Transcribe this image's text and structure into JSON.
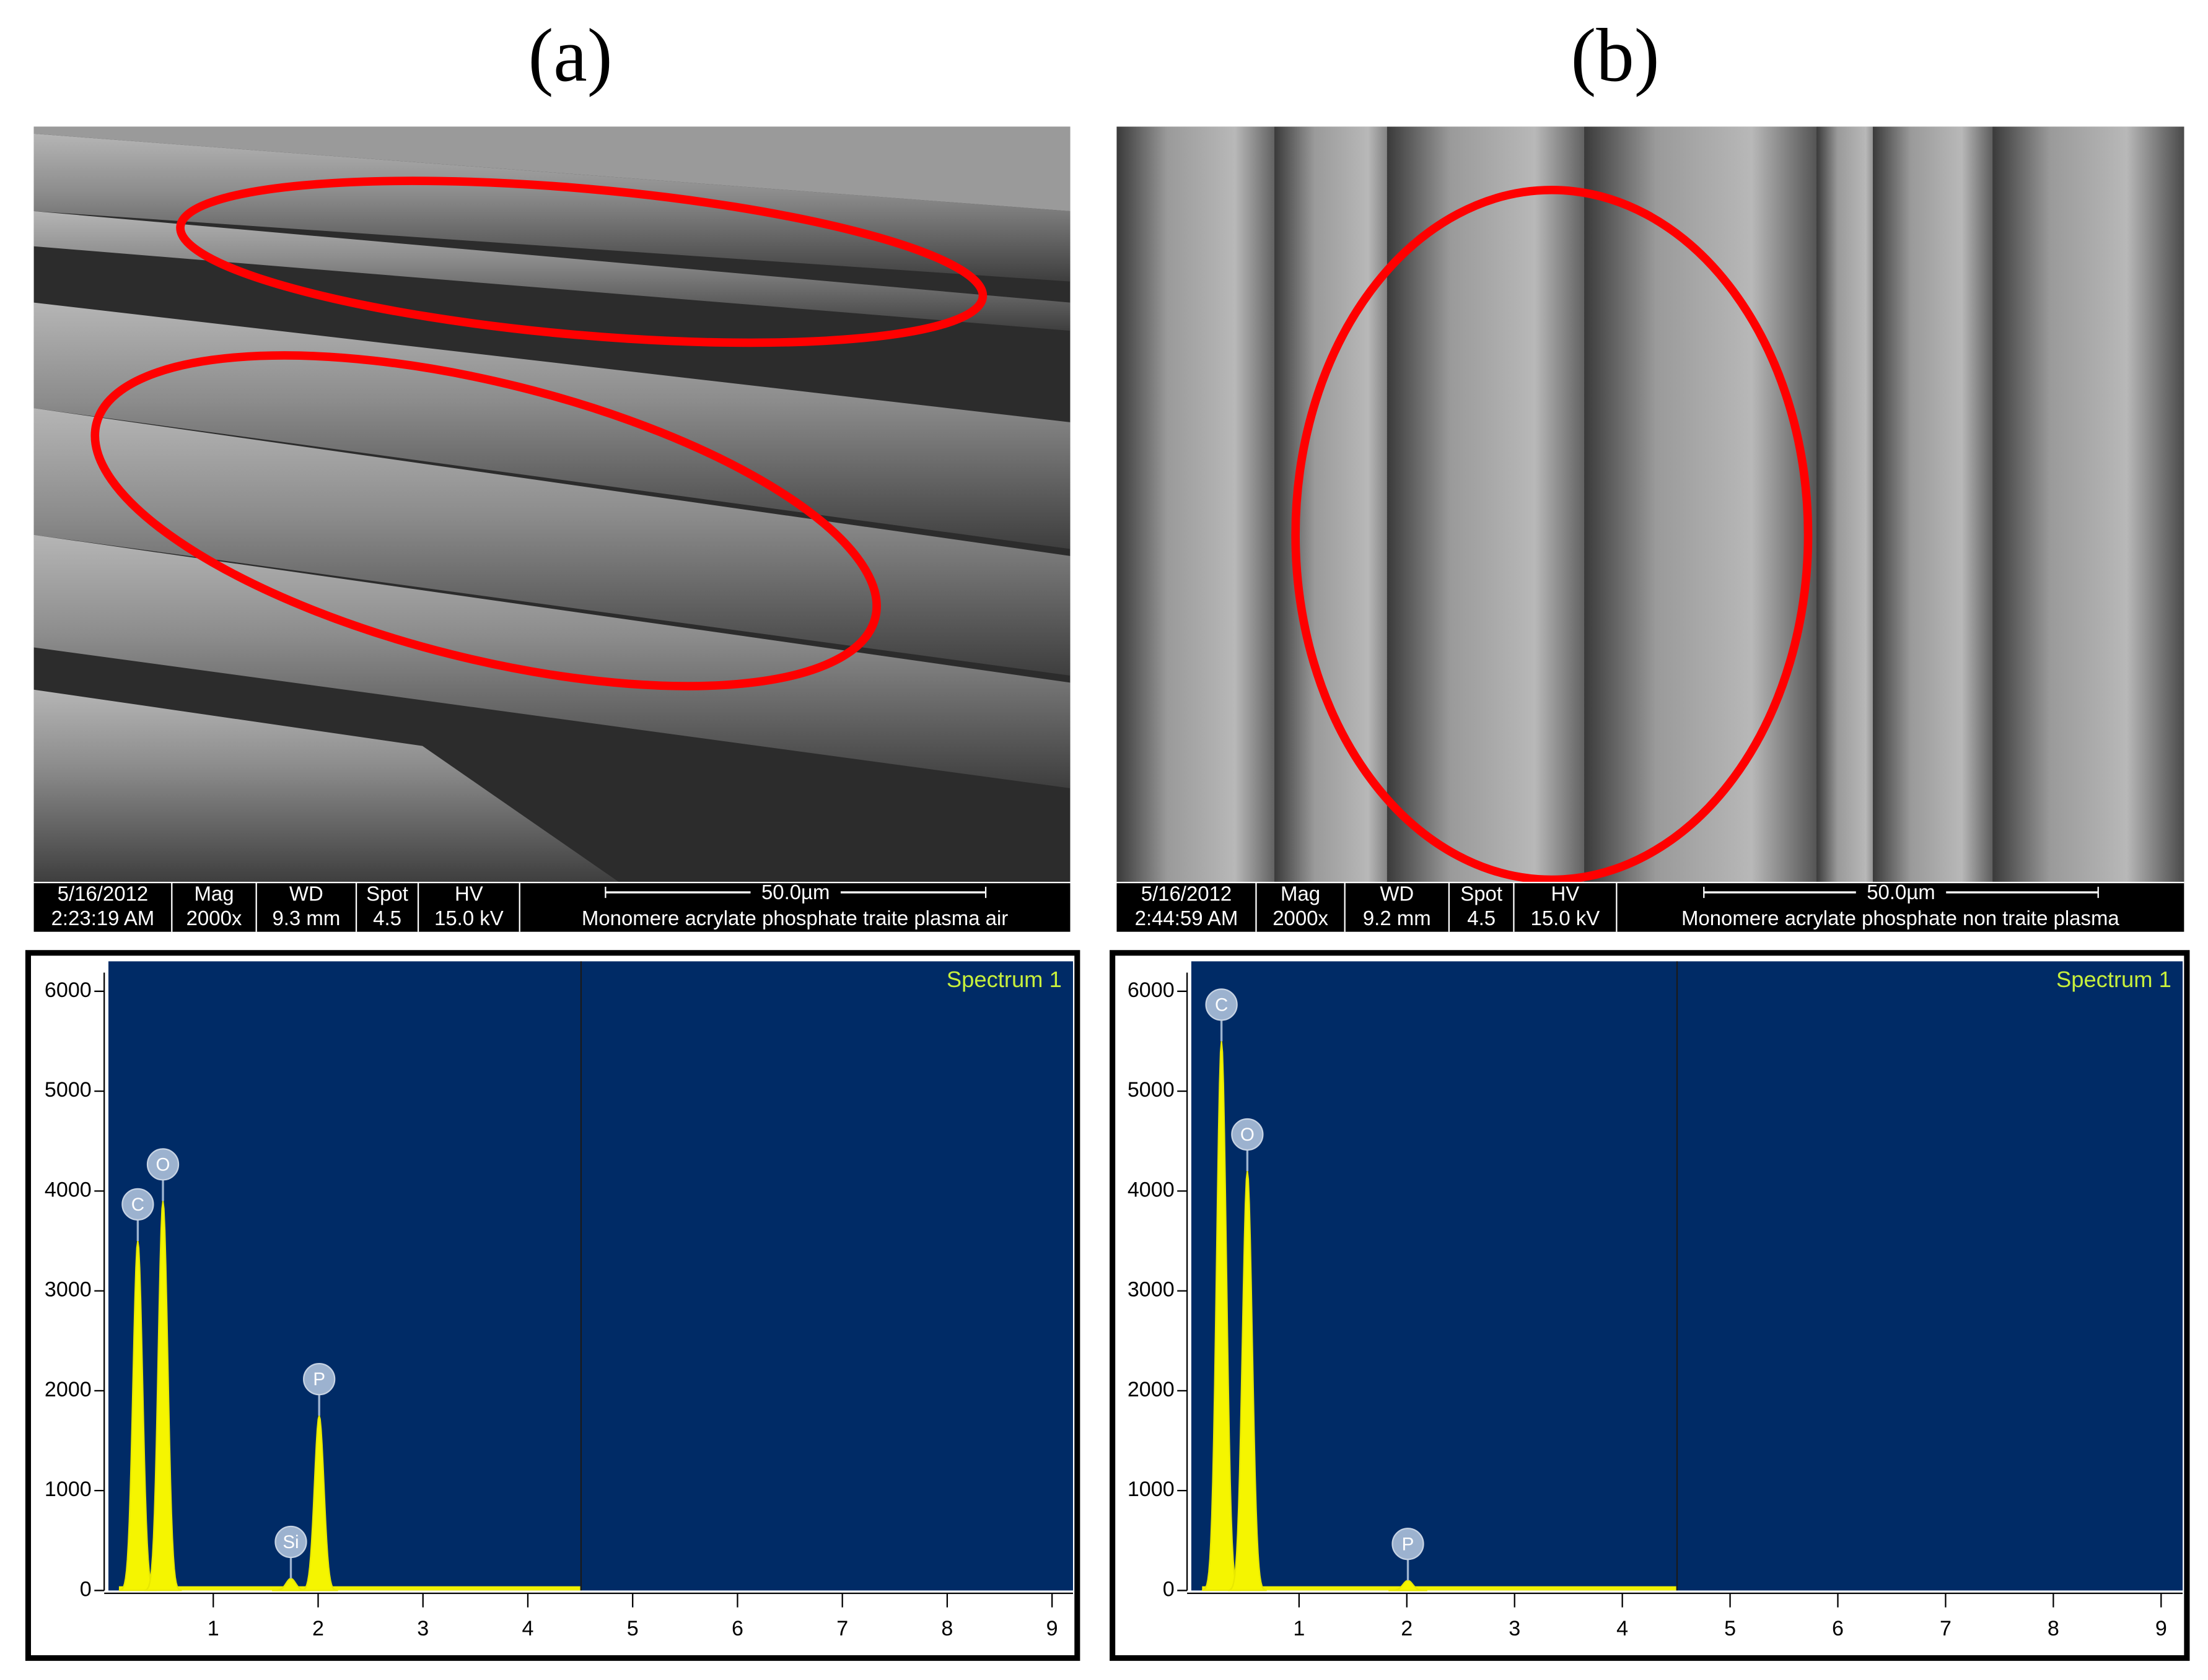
{
  "panels": [
    {
      "label": "(a)",
      "sem": {
        "date": "5/16/2012",
        "time": "2:23:19 AM",
        "columns": [
          {
            "header": "Mag",
            "value": "2000x"
          },
          {
            "header": "WD",
            "value": "9.3 mm"
          },
          {
            "header": "Spot",
            "value": "4.5"
          },
          {
            "header": "HV",
            "value": "15.0 kV"
          }
        ],
        "scale_bar": "50.0µm",
        "description": "Monomere acrylate phosphate traite plasma air"
      },
      "spectrum": {
        "title": "Spectrum 1",
        "xlim": [
          0,
          9.2
        ],
        "ylim": [
          0,
          6300
        ],
        "xticks": [
          1,
          2,
          3,
          4,
          5,
          6,
          7,
          8,
          9
        ],
        "yticks": [
          0,
          1000,
          2000,
          3000,
          4000,
          5000,
          6000
        ],
        "peaks": [
          {
            "element": "C",
            "energy": 0.28,
            "counts": 3500
          },
          {
            "element": "O",
            "energy": 0.52,
            "counts": 3900
          },
          {
            "element": "Si",
            "energy": 1.74,
            "counts": 120
          },
          {
            "element": "P",
            "energy": 2.01,
            "counts": 1750
          }
        ]
      }
    },
    {
      "label": "(b)",
      "sem": {
        "date": "5/16/2012",
        "time": "2:44:59 AM",
        "columns": [
          {
            "header": "Mag",
            "value": "2000x"
          },
          {
            "header": "WD",
            "value": "9.2 mm"
          },
          {
            "header": "Spot",
            "value": "4.5"
          },
          {
            "header": "HV",
            "value": "15.0 kV"
          }
        ],
        "scale_bar": "50.0µm",
        "description": "Monomere acrylate phosphate non traite plasma"
      },
      "spectrum": {
        "title": "Spectrum 1",
        "xlim": [
          0,
          9.2
        ],
        "ylim": [
          0,
          6300
        ],
        "xticks": [
          1,
          2,
          3,
          4,
          5,
          6,
          7,
          8,
          9
        ],
        "yticks": [
          0,
          1000,
          2000,
          3000,
          4000,
          5000,
          6000
        ],
        "peaks": [
          {
            "element": "C",
            "energy": 0.28,
            "counts": 5500
          },
          {
            "element": "O",
            "energy": 0.52,
            "counts": 4200
          },
          {
            "element": "P",
            "energy": 2.01,
            "counts": 100
          }
        ]
      }
    }
  ]
}
